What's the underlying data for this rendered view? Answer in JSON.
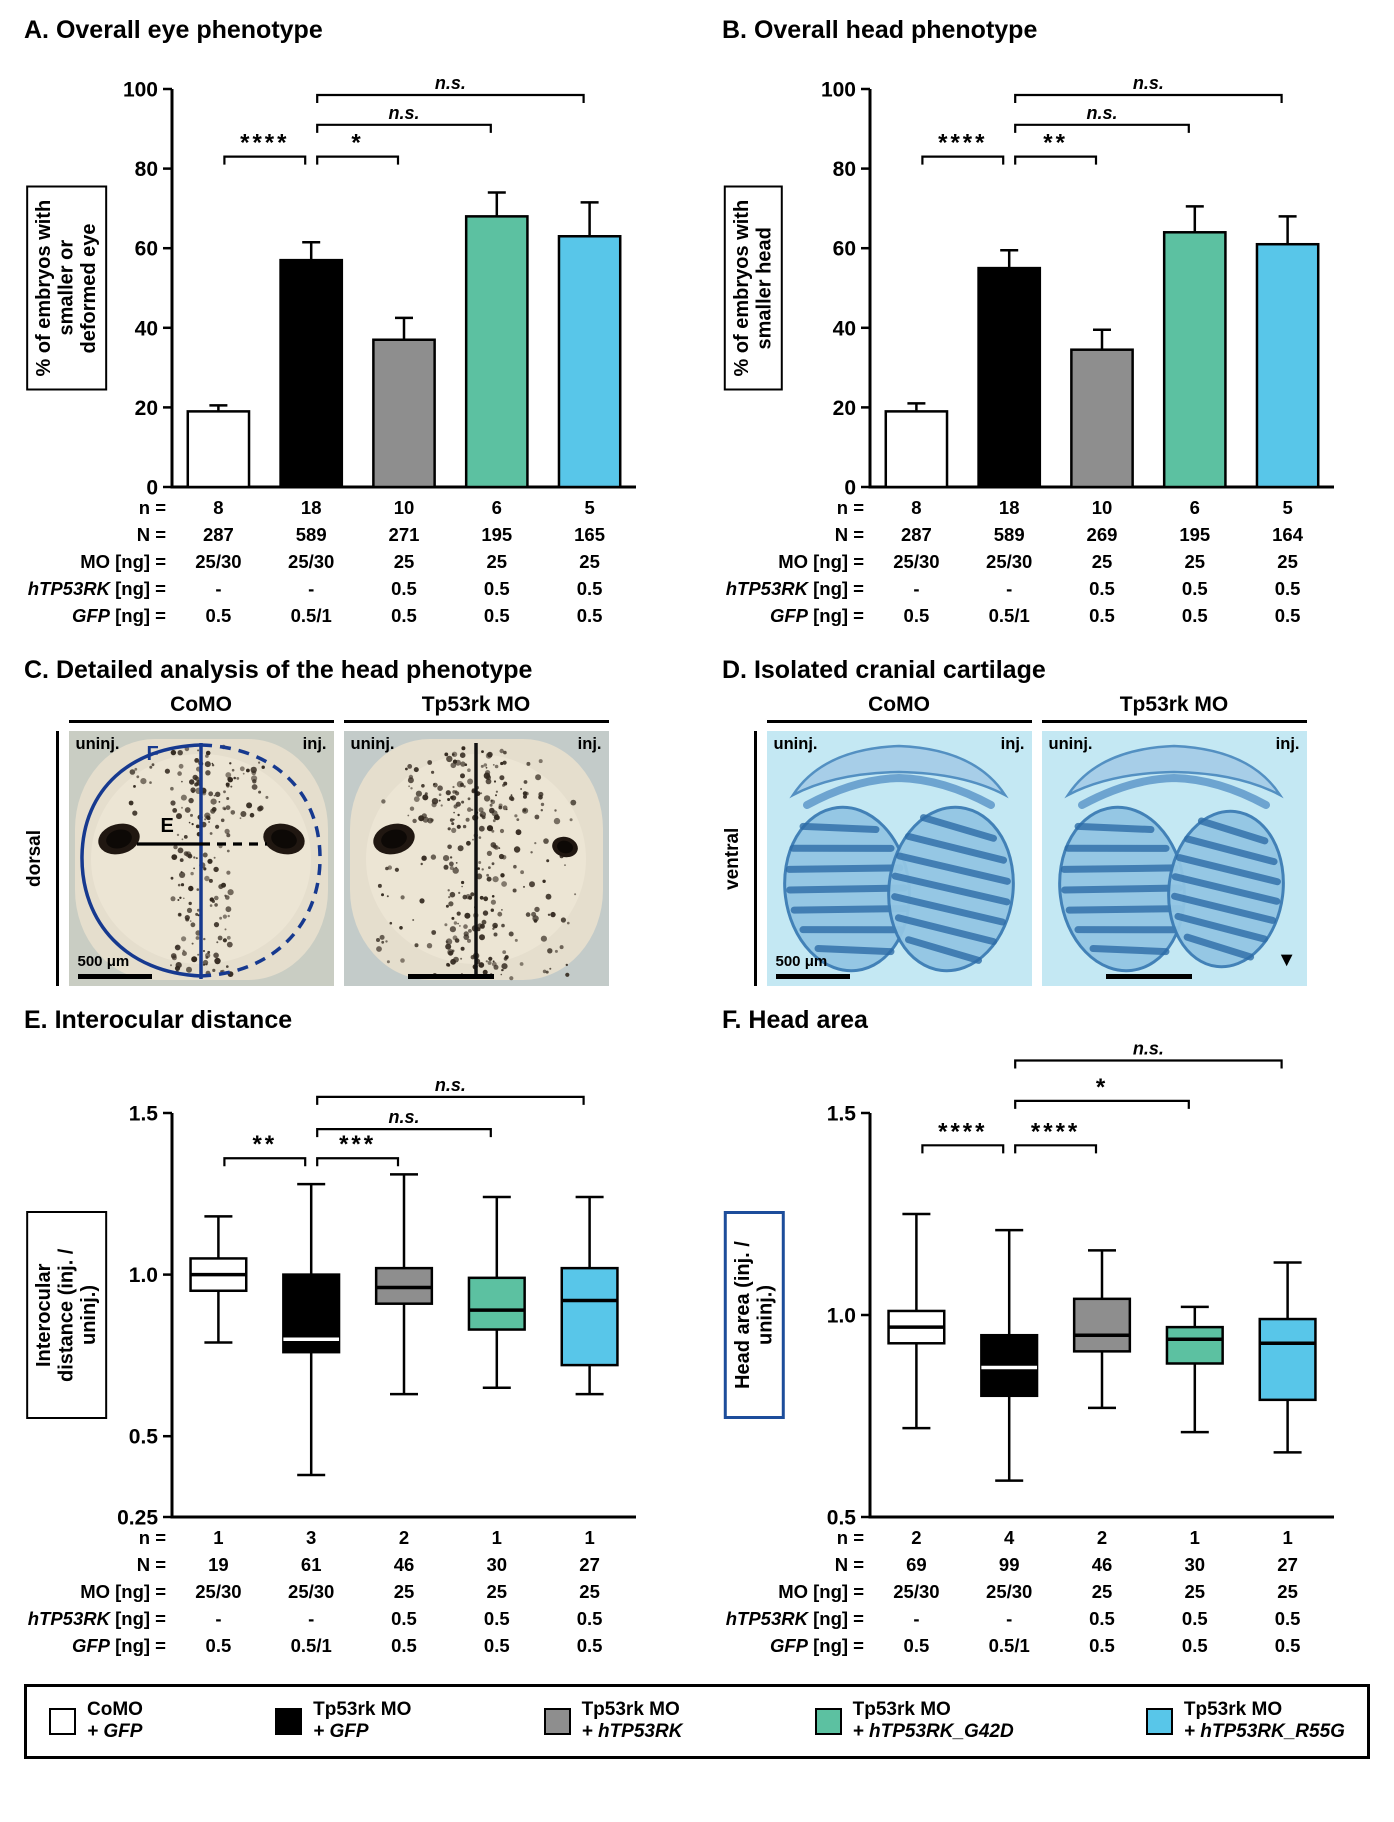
{
  "figure_background": "#ffffff",
  "group_colors": [
    "#ffffff",
    "#000000",
    "#8e8e8e",
    "#5cc1a1",
    "#58c6e9"
  ],
  "colors": {
    "annotation_blue": "#16398f",
    "f_label_box_border": "#1d4d9b",
    "cartilage_stain_blue": "#3c7cb4",
    "cartilage_background": "#c4e8f3"
  },
  "panels": {
    "C": {
      "title": "C. Detailed analysis of the head phenotype",
      "side_label": "dorsal",
      "col1": "CoMO",
      "col2": "Tp53rk MO",
      "uninj_label": "uninj.",
      "inj_label": "inj.",
      "scale_label": "500 μm",
      "marker_E": "E",
      "marker_F": "F"
    },
    "D": {
      "title": "D. Isolated cranial cartilage",
      "side_label": "ventral",
      "col1": "CoMO",
      "col2": "Tp53rk MO",
      "uninj_label": "uninj.",
      "inj_label": "inj.",
      "scale_label": "500 μm",
      "arrowhead": "▼"
    }
  },
  "legend": {
    "items": [
      {
        "line1": "CoMO",
        "line2": "+ GFP"
      },
      {
        "line1": "Tp53rk MO",
        "line2": "+ GFP"
      },
      {
        "line1": "Tp53rk MO",
        "line2": "+ hTP53RK"
      },
      {
        "line1": "Tp53rk MO",
        "line2": "+ hTP53RK_G42D"
      },
      {
        "line1": "Tp53rk MO",
        "line2": "+ hTP53RK_R55G"
      }
    ]
  },
  "chart_data": [
    {
      "id": "A",
      "type": "bar",
      "title": "A. Overall eye phenotype",
      "ylabel": "% of embryos with smaller or deformed eye",
      "ylim": [
        0,
        100
      ],
      "yticks": [
        {
          "v": 0,
          "label": "0"
        },
        {
          "v": 20,
          "label": "20"
        },
        {
          "v": 40,
          "label": "40"
        },
        {
          "v": 60,
          "label": "60"
        },
        {
          "v": 80,
          "label": "80"
        },
        {
          "v": 100,
          "label": "100"
        }
      ],
      "categories": [
        "CoMO + GFP",
        "Tp53rk MO + GFP",
        "Tp53rk MO + hTP53RK",
        "Tp53rk MO + hTP53RK_G42D",
        "Tp53rk MO + hTP53RK_R55G"
      ],
      "values": [
        19,
        57,
        37,
        68,
        63
      ],
      "errors": [
        1.5,
        4.5,
        5.5,
        6,
        8.5
      ],
      "significance": [
        {
          "from": 0,
          "to": 1,
          "label": "****",
          "y": 83
        },
        {
          "from": 1,
          "to": 2,
          "label": "*",
          "y": 83
        },
        {
          "from": 1,
          "to": 3,
          "label": "n.s.",
          "y": 91
        },
        {
          "from": 1,
          "to": 4,
          "label": "n.s.",
          "y": 98.5
        }
      ],
      "table": {
        "rows": [
          {
            "label": [
              {
                "text": "n =",
                "italic": false
              }
            ],
            "values": [
              "8",
              "18",
              "10",
              "6",
              "5"
            ]
          },
          {
            "label": [
              {
                "text": "N =",
                "italic": false
              }
            ],
            "values": [
              "287",
              "589",
              "271",
              "195",
              "165"
            ]
          },
          {
            "label": [
              {
                "text": "MO [ng] =",
                "italic": false
              }
            ],
            "values": [
              "25/30",
              "25/30",
              "25",
              "25",
              "25"
            ]
          },
          {
            "label": [
              {
                "text": "hTP53RK",
                "italic": true
              },
              {
                "text": " [ng] =",
                "italic": false
              }
            ],
            "values": [
              "-",
              "-",
              "0.5",
              "0.5",
              "0.5"
            ]
          },
          {
            "label": [
              {
                "text": "GFP",
                "italic": true
              },
              {
                "text": " [ng] =",
                "italic": false
              }
            ],
            "values": [
              "0.5",
              "0.5/1",
              "0.5",
              "0.5",
              "0.5"
            ]
          }
        ]
      }
    },
    {
      "id": "B",
      "type": "bar",
      "title": "B. Overall head phenotype",
      "ylabel": "% of embryos with smaller head",
      "ylim": [
        0,
        100
      ],
      "yticks": [
        {
          "v": 0,
          "label": "0"
        },
        {
          "v": 20,
          "label": "20"
        },
        {
          "v": 40,
          "label": "40"
        },
        {
          "v": 60,
          "label": "60"
        },
        {
          "v": 80,
          "label": "80"
        },
        {
          "v": 100,
          "label": "100"
        }
      ],
      "categories": [
        "CoMO + GFP",
        "Tp53rk MO + GFP",
        "Tp53rk MO + hTP53RK",
        "Tp53rk MO + hTP53RK_G42D",
        "Tp53rk MO + hTP53RK_R55G"
      ],
      "values": [
        19,
        55,
        34.5,
        64,
        61
      ],
      "errors": [
        2,
        4.5,
        5,
        6.5,
        7
      ],
      "significance": [
        {
          "from": 0,
          "to": 1,
          "label": "****",
          "y": 83
        },
        {
          "from": 1,
          "to": 2,
          "label": "**",
          "y": 83
        },
        {
          "from": 1,
          "to": 3,
          "label": "n.s.",
          "y": 91
        },
        {
          "from": 1,
          "to": 4,
          "label": "n.s.",
          "y": 98.5
        }
      ],
      "table": {
        "rows": [
          {
            "label": [
              {
                "text": "n =",
                "italic": false
              }
            ],
            "values": [
              "8",
              "18",
              "10",
              "6",
              "5"
            ]
          },
          {
            "label": [
              {
                "text": "N =",
                "italic": false
              }
            ],
            "values": [
              "287",
              "589",
              "269",
              "195",
              "164"
            ]
          },
          {
            "label": [
              {
                "text": "MO [ng] =",
                "italic": false
              }
            ],
            "values": [
              "25/30",
              "25/30",
              "25",
              "25",
              "25"
            ]
          },
          {
            "label": [
              {
                "text": "hTP53RK",
                "italic": true
              },
              {
                "text": " [ng] =",
                "italic": false
              }
            ],
            "values": [
              "-",
              "-",
              "0.5",
              "0.5",
              "0.5"
            ]
          },
          {
            "label": [
              {
                "text": "GFP",
                "italic": true
              },
              {
                "text": " [ng] =",
                "italic": false
              }
            ],
            "values": [
              "0.5",
              "0.5/1",
              "0.5",
              "0.5",
              "0.5"
            ]
          }
        ]
      }
    },
    {
      "id": "E",
      "type": "box",
      "title": "E. Interocular distance",
      "ylabel": "Interocular distance (inj. / uninj.)",
      "ylim": [
        0.25,
        1.5
      ],
      "yticks": [
        {
          "v": 0.25,
          "label": "0.25"
        },
        {
          "v": 0.5,
          "label": "0.5"
        },
        {
          "v": 1.0,
          "label": "1.0"
        },
        {
          "v": 1.5,
          "label": "1.5"
        }
      ],
      "categories": [
        "CoMO + GFP",
        "Tp53rk MO + GFP",
        "Tp53rk MO + hTP53RK",
        "Tp53rk MO + hTP53RK_G42D",
        "Tp53rk MO + hTP53RK_R55G"
      ],
      "boxes": [
        {
          "whislo": 0.79,
          "q1": 0.95,
          "med": 1.0,
          "q3": 1.05,
          "whishi": 1.18
        },
        {
          "whislo": 0.38,
          "q1": 0.76,
          "med": 0.8,
          "q3": 1.0,
          "whishi": 1.28
        },
        {
          "whislo": 0.63,
          "q1": 0.91,
          "med": 0.96,
          "q3": 1.02,
          "whishi": 1.31
        },
        {
          "whislo": 0.65,
          "q1": 0.83,
          "med": 0.89,
          "q3": 0.99,
          "whishi": 1.24
        },
        {
          "whislo": 0.63,
          "q1": 0.72,
          "med": 0.92,
          "q3": 1.02,
          "whishi": 1.24
        }
      ],
      "significance": [
        {
          "from": 0,
          "to": 1,
          "label": "**",
          "y": 1.36
        },
        {
          "from": 1,
          "to": 2,
          "label": "***",
          "y": 1.36
        },
        {
          "from": 1,
          "to": 3,
          "label": "n.s.",
          "y": 1.45
        },
        {
          "from": 1,
          "to": 4,
          "label": "n.s.",
          "y": 1.55
        }
      ],
      "table": {
        "rows": [
          {
            "label": [
              {
                "text": "n =",
                "italic": false
              }
            ],
            "values": [
              "1",
              "3",
              "2",
              "1",
              "1"
            ]
          },
          {
            "label": [
              {
                "text": "N =",
                "italic": false
              }
            ],
            "values": [
              "19",
              "61",
              "46",
              "30",
              "27"
            ]
          },
          {
            "label": [
              {
                "text": "MO [ng] =",
                "italic": false
              }
            ],
            "values": [
              "25/30",
              "25/30",
              "25",
              "25",
              "25"
            ]
          },
          {
            "label": [
              {
                "text": "hTP53RK",
                "italic": true
              },
              {
                "text": " [ng] =",
                "italic": false
              }
            ],
            "values": [
              "-",
              "-",
              "0.5",
              "0.5",
              "0.5"
            ]
          },
          {
            "label": [
              {
                "text": "GFP",
                "italic": true
              },
              {
                "text": " [ng] =",
                "italic": false
              }
            ],
            "values": [
              "0.5",
              "0.5/1",
              "0.5",
              "0.5",
              "0.5"
            ]
          }
        ]
      }
    },
    {
      "id": "F",
      "type": "box",
      "title": "F. Head area",
      "ylabel": "Head area (inj. / uninj.)",
      "ylim": [
        0.5,
        1.5
      ],
      "yticks": [
        {
          "v": 0.5,
          "label": "0.5"
        },
        {
          "v": 1.0,
          "label": "1.0"
        },
        {
          "v": 1.5,
          "label": "1.5"
        }
      ],
      "categories": [
        "CoMO + GFP",
        "Tp53rk MO + GFP",
        "Tp53rk MO + hTP53RK",
        "Tp53rk MO + hTP53RK_G42D",
        "Tp53rk MO + hTP53RK_R55G"
      ],
      "boxes": [
        {
          "whislo": 0.72,
          "q1": 0.93,
          "med": 0.97,
          "q3": 1.01,
          "whishi": 1.25
        },
        {
          "whislo": 0.59,
          "q1": 0.8,
          "med": 0.87,
          "q3": 0.95,
          "whishi": 1.21
        },
        {
          "whislo": 0.77,
          "q1": 0.91,
          "med": 0.95,
          "q3": 1.04,
          "whishi": 1.16
        },
        {
          "whislo": 0.71,
          "q1": 0.88,
          "med": 0.94,
          "q3": 0.97,
          "whishi": 1.02
        },
        {
          "whislo": 0.66,
          "q1": 0.79,
          "med": 0.93,
          "q3": 0.99,
          "whishi": 1.13
        }
      ],
      "significance": [
        {
          "from": 0,
          "to": 1,
          "label": "****",
          "y": 1.42
        },
        {
          "from": 1,
          "to": 2,
          "label": "****",
          "y": 1.42
        },
        {
          "from": 1,
          "to": 3,
          "label": "*",
          "y": 1.53
        },
        {
          "from": 1,
          "to": 4,
          "label": "n.s.",
          "y": 1.63
        }
      ],
      "table": {
        "rows": [
          {
            "label": [
              {
                "text": "n =",
                "italic": false
              }
            ],
            "values": [
              "2",
              "4",
              "2",
              "1",
              "1"
            ]
          },
          {
            "label": [
              {
                "text": "N =",
                "italic": false
              }
            ],
            "values": [
              "69",
              "99",
              "46",
              "30",
              "27"
            ]
          },
          {
            "label": [
              {
                "text": "MO [ng] =",
                "italic": false
              }
            ],
            "values": [
              "25/30",
              "25/30",
              "25",
              "25",
              "25"
            ]
          },
          {
            "label": [
              {
                "text": "hTP53RK",
                "italic": true
              },
              {
                "text": " [ng] =",
                "italic": false
              }
            ],
            "values": [
              "-",
              "-",
              "0.5",
              "0.5",
              "0.5"
            ]
          },
          {
            "label": [
              {
                "text": "GFP",
                "italic": true
              },
              {
                "text": " [ng] =",
                "italic": false
              }
            ],
            "values": [
              "0.5",
              "0.5/1",
              "0.5",
              "0.5",
              "0.5"
            ]
          }
        ]
      }
    }
  ]
}
